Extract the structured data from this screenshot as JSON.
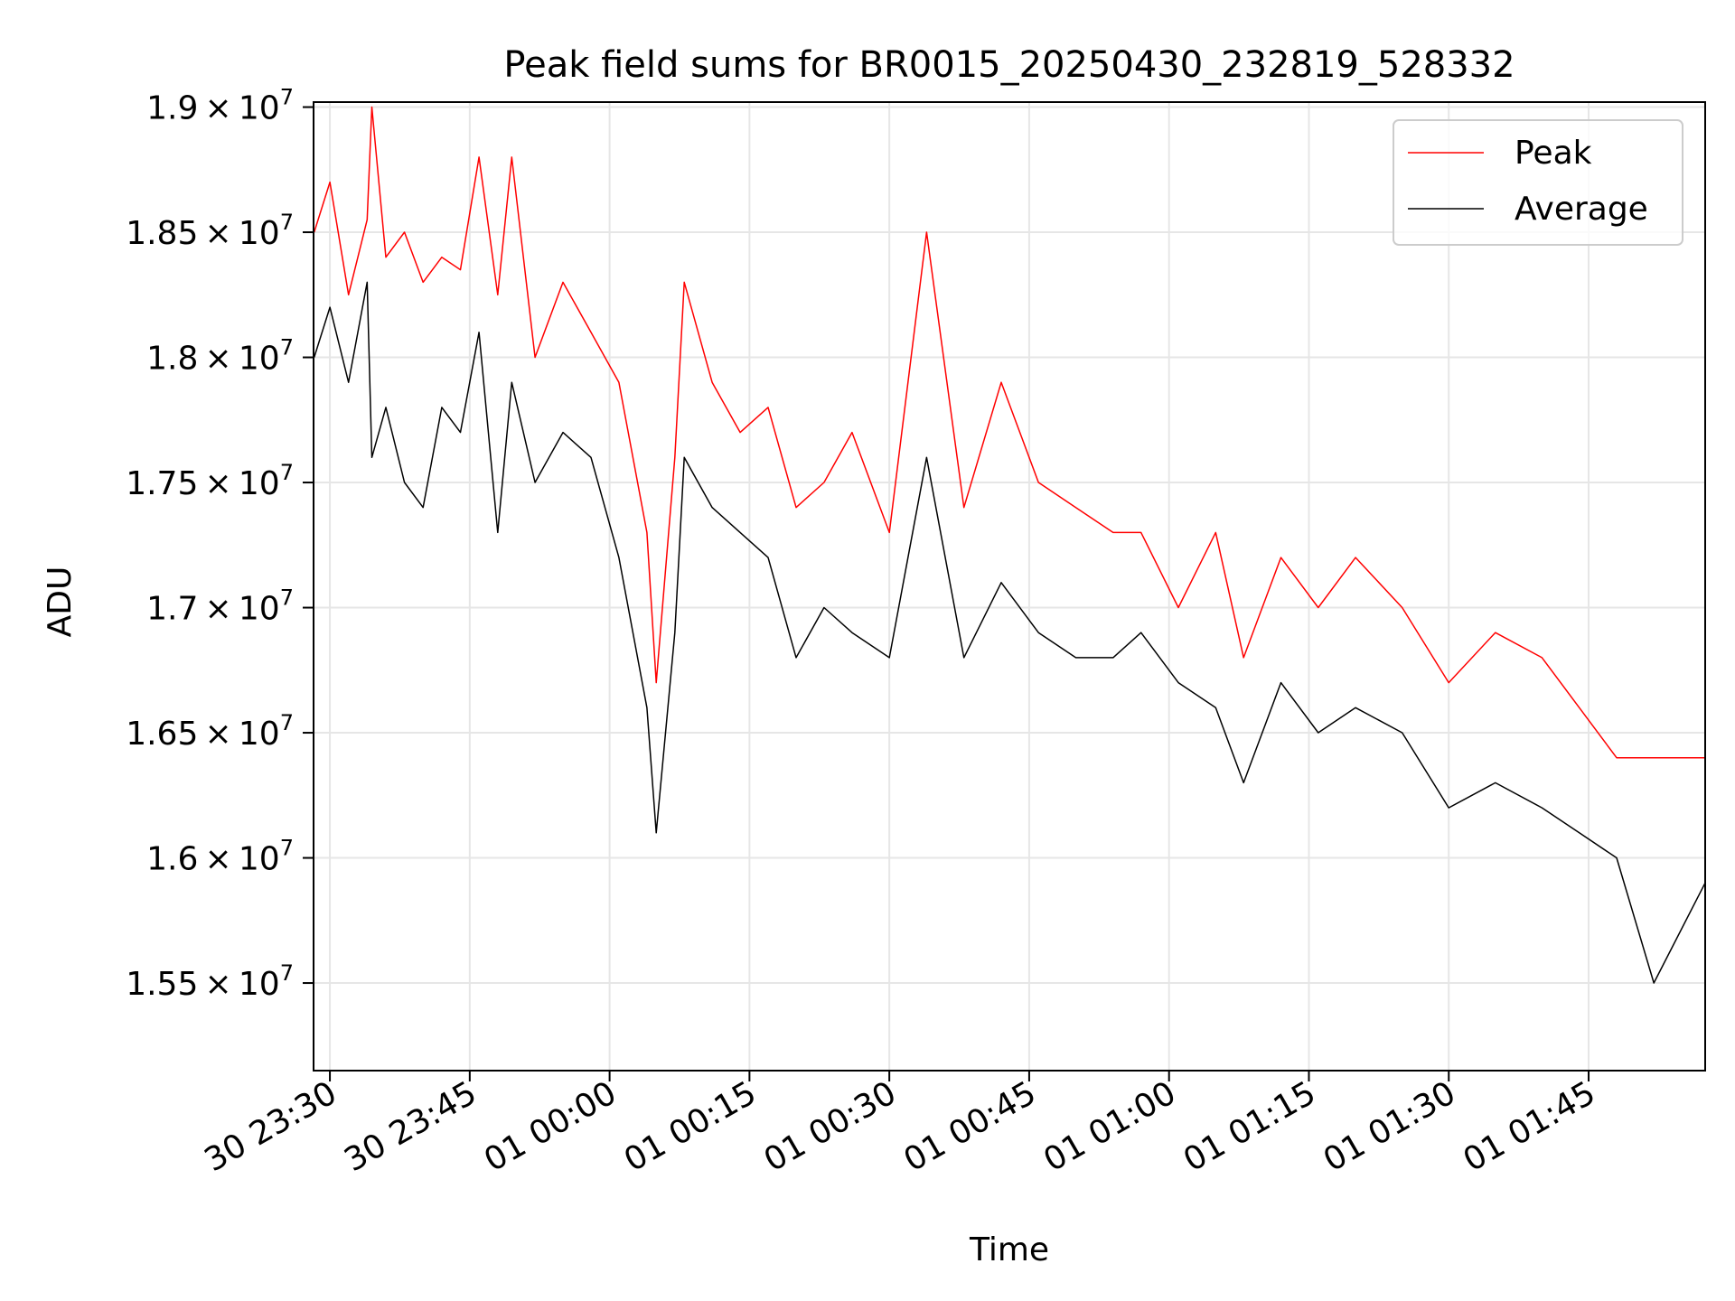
{
  "chart_data": {
    "type": "line",
    "title": "Peak field sums for BR0015_20250430_232819_528332",
    "xlabel": "Time",
    "ylabel": "ADU",
    "xlim": [
      "2025-04-30 23:28:15",
      "2025-05-01 01:57:30"
    ],
    "ylim": [
      15150000,
      19020000
    ],
    "x_ticks": [
      {
        "t": "2025-04-30 23:30:00",
        "label": "30 23:30"
      },
      {
        "t": "2025-04-30 23:45:00",
        "label": "30 23:45"
      },
      {
        "t": "2025-05-01 00:00:00",
        "label": "01 00:00"
      },
      {
        "t": "2025-05-01 00:15:00",
        "label": "01 00:15"
      },
      {
        "t": "2025-05-01 00:30:00",
        "label": "01 00:30"
      },
      {
        "t": "2025-05-01 00:45:00",
        "label": "01 00:45"
      },
      {
        "t": "2025-05-01 01:00:00",
        "label": "01 01:00"
      },
      {
        "t": "2025-05-01 01:15:00",
        "label": "01 01:15"
      },
      {
        "t": "2025-05-01 01:30:00",
        "label": "01 01:30"
      },
      {
        "t": "2025-05-01 01:45:00",
        "label": "01 01:45"
      }
    ],
    "y_ticks": [
      {
        "value": 15500000,
        "mantissa": "1.55",
        "exponent": "7"
      },
      {
        "value": 16000000,
        "mantissa": "1.6",
        "exponent": "7"
      },
      {
        "value": 16500000,
        "mantissa": "1.65",
        "exponent": "7"
      },
      {
        "value": 17000000,
        "mantissa": "1.7",
        "exponent": "7"
      },
      {
        "value": 17500000,
        "mantissa": "1.75",
        "exponent": "7"
      },
      {
        "value": 18000000,
        "mantissa": "1.8",
        "exponent": "7"
      },
      {
        "value": 18500000,
        "mantissa": "1.85",
        "exponent": "7"
      },
      {
        "value": 19000000,
        "mantissa": "1.9",
        "exponent": "7"
      }
    ],
    "grid": true,
    "legend": {
      "position": "top-right"
    },
    "series": [
      {
        "name": "Peak",
        "color": "#ff0000",
        "x": [
          "2025-04-30 23:28:19",
          "2025-04-30 23:30:00",
          "2025-04-30 23:32:00",
          "2025-04-30 23:34:00",
          "2025-04-30 23:34:30",
          "2025-04-30 23:36:00",
          "2025-04-30 23:38:00",
          "2025-04-30 23:40:00",
          "2025-04-30 23:42:00",
          "2025-04-30 23:44:00",
          "2025-04-30 23:46:00",
          "2025-04-30 23:48:00",
          "2025-04-30 23:49:30",
          "2025-04-30 23:52:00",
          "2025-04-30 23:55:00",
          "2025-04-30 23:58:00",
          "2025-05-01 00:01:00",
          "2025-05-01 00:04:00",
          "2025-05-01 00:05:00",
          "2025-05-01 00:07:00",
          "2025-05-01 00:08:00",
          "2025-05-01 00:11:00",
          "2025-05-01 00:14:00",
          "2025-05-01 00:17:00",
          "2025-05-01 00:20:00",
          "2025-05-01 00:23:00",
          "2025-05-01 00:26:00",
          "2025-05-01 00:30:00",
          "2025-05-01 00:34:00",
          "2025-05-01 00:38:00",
          "2025-05-01 00:42:00",
          "2025-05-01 00:46:00",
          "2025-05-01 00:50:00",
          "2025-05-01 00:54:00",
          "2025-05-01 00:57:00",
          "2025-05-01 01:01:00",
          "2025-05-01 01:05:00",
          "2025-05-01 01:08:00",
          "2025-05-01 01:12:00",
          "2025-05-01 01:16:00",
          "2025-05-01 01:20:00",
          "2025-05-01 01:25:00",
          "2025-05-01 01:30:00",
          "2025-05-01 01:35:00",
          "2025-05-01 01:40:00",
          "2025-05-01 01:44:00",
          "2025-05-01 01:48:00",
          "2025-05-01 01:52:00",
          "2025-05-01 01:57:30"
        ],
        "values": [
          18500000,
          18700000,
          18250000,
          18550000,
          19000000,
          18400000,
          18500000,
          18300000,
          18400000,
          18350000,
          18800000,
          18250000,
          18800000,
          18000000,
          18300000,
          18100000,
          17900000,
          17300000,
          16700000,
          17600000,
          18300000,
          17900000,
          17700000,
          17800000,
          17400000,
          17500000,
          17700000,
          17300000,
          18500000,
          17400000,
          17900000,
          17500000,
          17400000,
          17300000,
          17300000,
          17000000,
          17300000,
          16800000,
          17200000,
          17000000,
          17200000,
          17000000,
          16700000,
          16900000,
          16800000,
          16600000,
          16400000,
          16400000,
          16400000
        ]
      },
      {
        "name": "Average",
        "color": "#000000",
        "x": [
          "2025-04-30 23:28:19",
          "2025-04-30 23:30:00",
          "2025-04-30 23:32:00",
          "2025-04-30 23:34:00",
          "2025-04-30 23:34:30",
          "2025-04-30 23:36:00",
          "2025-04-30 23:38:00",
          "2025-04-30 23:40:00",
          "2025-04-30 23:42:00",
          "2025-04-30 23:44:00",
          "2025-04-30 23:46:00",
          "2025-04-30 23:48:00",
          "2025-04-30 23:49:30",
          "2025-04-30 23:52:00",
          "2025-04-30 23:55:00",
          "2025-04-30 23:58:00",
          "2025-05-01 00:01:00",
          "2025-05-01 00:04:00",
          "2025-05-01 00:05:00",
          "2025-05-01 00:07:00",
          "2025-05-01 00:08:00",
          "2025-05-01 00:11:00",
          "2025-05-01 00:14:00",
          "2025-05-01 00:17:00",
          "2025-05-01 00:20:00",
          "2025-05-01 00:23:00",
          "2025-05-01 00:26:00",
          "2025-05-01 00:30:00",
          "2025-05-01 00:34:00",
          "2025-05-01 00:38:00",
          "2025-05-01 00:42:00",
          "2025-05-01 00:46:00",
          "2025-05-01 00:50:00",
          "2025-05-01 00:54:00",
          "2025-05-01 00:57:00",
          "2025-05-01 01:01:00",
          "2025-05-01 01:05:00",
          "2025-05-01 01:08:00",
          "2025-05-01 01:12:00",
          "2025-05-01 01:16:00",
          "2025-05-01 01:20:00",
          "2025-05-01 01:25:00",
          "2025-05-01 01:30:00",
          "2025-05-01 01:35:00",
          "2025-05-01 01:40:00",
          "2025-05-01 01:44:00",
          "2025-05-01 01:48:00",
          "2025-05-01 01:52:00",
          "2025-05-01 01:57:30"
        ],
        "values": [
          18000000,
          18200000,
          17900000,
          18300000,
          17600000,
          17800000,
          17500000,
          17400000,
          17800000,
          17700000,
          18100000,
          17300000,
          17900000,
          17500000,
          17700000,
          17600000,
          17200000,
          16600000,
          16100000,
          16900000,
          17600000,
          17400000,
          17300000,
          17200000,
          16800000,
          17000000,
          16900000,
          16800000,
          17600000,
          16800000,
          17100000,
          16900000,
          16800000,
          16800000,
          16900000,
          16700000,
          16600000,
          16300000,
          16700000,
          16500000,
          16600000,
          16500000,
          16200000,
          16300000,
          16200000,
          16100000,
          16000000,
          15500000,
          15900000
        ]
      }
    ]
  }
}
